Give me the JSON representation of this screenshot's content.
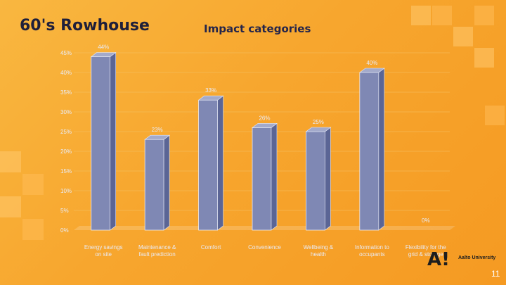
{
  "slide": {
    "title": "60's Rowhouse",
    "logo": "A!",
    "university": "Aalto University",
    "page_number": "11"
  },
  "colors": {
    "bar_front": "#7f88b4",
    "bar_side": "#5b6595",
    "bar_top": "#a3aacb",
    "axis_text": "#e9ecf8",
    "gridline": "#f4c46a"
  },
  "chart_data": {
    "type": "bar",
    "title": "Impact categories",
    "categories": [
      "Energy savings on site",
      "Maintenance & fault prediction",
      "Comfort",
      "Convenience",
      "Wellbeing & health",
      "Information to occupants",
      "Flexibility for the grid & storage"
    ],
    "values": [
      44,
      23,
      33,
      26,
      25,
      40,
      0
    ],
    "data_labels": [
      "44%",
      "23%",
      "33%",
      "26%",
      "25%",
      "40%",
      "0%"
    ],
    "yticks": [
      "0%",
      "5%",
      "10%",
      "15%",
      "20%",
      "25%",
      "30%",
      "35%",
      "40%",
      "45%"
    ],
    "ylim": [
      0,
      45
    ],
    "xlabel": "",
    "ylabel": ""
  }
}
